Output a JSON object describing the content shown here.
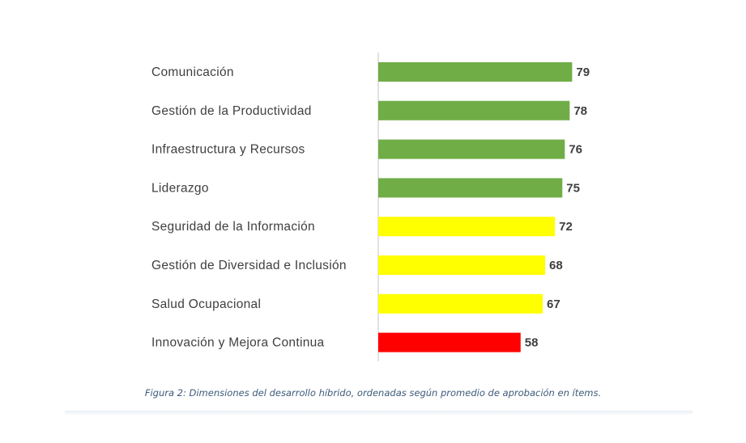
{
  "chart_data": {
    "type": "bar",
    "orientation": "horizontal",
    "categories": [
      "Comunicación",
      "Gestión de la Productividad",
      "Infraestructura y Recursos",
      "Liderazgo",
      "Seguridad de la Información",
      "Gestión de Diversidad e Inclusión",
      "Salud Ocupacional",
      "Innovación y Mejora Continua"
    ],
    "values": [
      79,
      78,
      76,
      75,
      72,
      68,
      67,
      58
    ],
    "colors": [
      "#70ad47",
      "#70ad47",
      "#70ad47",
      "#70ad47",
      "#ffff00",
      "#ffff00",
      "#ffff00",
      "#ff0000"
    ],
    "xlim": [
      0,
      100
    ],
    "grid": false,
    "legend": "none",
    "data_labels": true,
    "axis_line_color": "#d9d9d9"
  },
  "caption": "Figura 2: Dimensiones del desarrollo híbrido, ordenadas según promedio de aprobación en ítems."
}
